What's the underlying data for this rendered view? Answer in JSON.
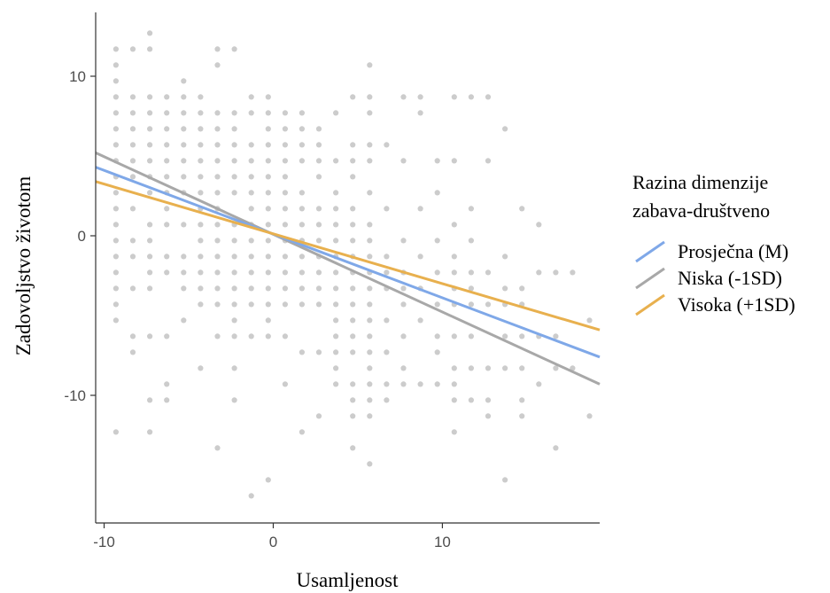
{
  "chart_data": {
    "type": "scatter",
    "title": "",
    "xlabel": "Usamljenost",
    "ylabel": "Zadovoljstvo životom",
    "xlim": [
      -10.5,
      19.3
    ],
    "ylim": [
      -18,
      14
    ],
    "x_ticks": [
      -10,
      0,
      10
    ],
    "x_tick_labels": [
      "-10",
      "0",
      "10"
    ],
    "y_ticks": [
      -10,
      0,
      10
    ],
    "y_tick_labels": [
      "-10",
      "0",
      "10"
    ],
    "grid": false,
    "point_color": "#999999",
    "point_opacity": 0.5,
    "legend": {
      "title_lines": [
        "Razina dimenzije",
        "zabava-društveno"
      ],
      "position": "right",
      "entries": [
        {
          "label": "Prosječna (M)",
          "color": "#7fa8e8"
        },
        {
          "label": "Niska (-1SD)",
          "color": "#a8a8a8"
        },
        {
          "label": "Visoka (+1SD)",
          "color": "#e8b04e"
        }
      ]
    },
    "series": [
      {
        "name": "Prosječna (M)",
        "color": "#7fa8e8",
        "x": [
          -10.5,
          19.3
        ],
        "y": [
          4.3,
          -7.6
        ]
      },
      {
        "name": "Niska (-1SD)",
        "color": "#a8a8a8",
        "x": [
          -10.5,
          19.3
        ],
        "y": [
          5.2,
          -9.3
        ]
      },
      {
        "name": "Visoka (+1SD)",
        "color": "#e8b04e",
        "x": [
          -10.5,
          19.3
        ],
        "y": [
          3.4,
          -5.9
        ]
      }
    ],
    "points": [
      [
        -9.3,
        11.7
      ],
      [
        -9.3,
        10.7
      ],
      [
        -9.3,
        9.7
      ],
      [
        -9.3,
        8.7
      ],
      [
        -9.3,
        7.7
      ],
      [
        -9.3,
        6.7
      ],
      [
        -9.3,
        5.7
      ],
      [
        -9.3,
        4.7
      ],
      [
        -9.3,
        3.7
      ],
      [
        -9.3,
        2.7
      ],
      [
        -9.3,
        1.7
      ],
      [
        -9.3,
        0.7
      ],
      [
        -9.3,
        -0.3
      ],
      [
        -9.3,
        -1.3
      ],
      [
        -9.3,
        -2.3
      ],
      [
        -9.3,
        -3.3
      ],
      [
        -9.3,
        -4.3
      ],
      [
        -9.3,
        -5.3
      ],
      [
        -9.3,
        -12.3
      ],
      [
        -8.3,
        11.7
      ],
      [
        -8.3,
        8.7
      ],
      [
        -8.3,
        7.7
      ],
      [
        -8.3,
        6.7
      ],
      [
        -8.3,
        5.7
      ],
      [
        -8.3,
        4.7
      ],
      [
        -8.3,
        3.7
      ],
      [
        -8.3,
        1.7
      ],
      [
        -8.3,
        -0.3
      ],
      [
        -8.3,
        -1.3
      ],
      [
        -8.3,
        -3.3
      ],
      [
        -8.3,
        -6.3
      ],
      [
        -8.3,
        -7.3
      ],
      [
        -7.3,
        12.7
      ],
      [
        -7.3,
        11.7
      ],
      [
        -7.3,
        8.7
      ],
      [
        -7.3,
        7.7
      ],
      [
        -7.3,
        6.7
      ],
      [
        -7.3,
        5.7
      ],
      [
        -7.3,
        4.7
      ],
      [
        -7.3,
        3.7
      ],
      [
        -7.3,
        2.7
      ],
      [
        -7.3,
        0.7
      ],
      [
        -7.3,
        -0.3
      ],
      [
        -7.3,
        -1.3
      ],
      [
        -7.3,
        -2.3
      ],
      [
        -7.3,
        -3.3
      ],
      [
        -7.3,
        -6.3
      ],
      [
        -7.3,
        -10.3
      ],
      [
        -7.3,
        -12.3
      ],
      [
        -6.3,
        8.7
      ],
      [
        -6.3,
        7.7
      ],
      [
        -6.3,
        6.7
      ],
      [
        -6.3,
        5.7
      ],
      [
        -6.3,
        4.7
      ],
      [
        -6.3,
        3.7
      ],
      [
        -6.3,
        2.7
      ],
      [
        -6.3,
        1.7
      ],
      [
        -6.3,
        0.7
      ],
      [
        -6.3,
        -1.3
      ],
      [
        -6.3,
        -2.3
      ],
      [
        -6.3,
        -6.3
      ],
      [
        -6.3,
        -9.3
      ],
      [
        -6.3,
        -10.3
      ],
      [
        -5.3,
        9.7
      ],
      [
        -5.3,
        8.7
      ],
      [
        -5.3,
        7.7
      ],
      [
        -5.3,
        6.7
      ],
      [
        -5.3,
        5.7
      ],
      [
        -5.3,
        4.7
      ],
      [
        -5.3,
        3.7
      ],
      [
        -5.3,
        2.7
      ],
      [
        -5.3,
        0.7
      ],
      [
        -5.3,
        -1.3
      ],
      [
        -5.3,
        -2.3
      ],
      [
        -5.3,
        -3.3
      ],
      [
        -5.3,
        -5.3
      ],
      [
        -4.3,
        8.7
      ],
      [
        -4.3,
        7.7
      ],
      [
        -4.3,
        6.7
      ],
      [
        -4.3,
        5.7
      ],
      [
        -4.3,
        4.7
      ],
      [
        -4.3,
        3.7
      ],
      [
        -4.3,
        2.7
      ],
      [
        -4.3,
        1.7
      ],
      [
        -4.3,
        0.7
      ],
      [
        -4.3,
        -0.3
      ],
      [
        -4.3,
        -1.3
      ],
      [
        -4.3,
        -2.3
      ],
      [
        -4.3,
        -3.3
      ],
      [
        -4.3,
        -4.3
      ],
      [
        -4.3,
        -8.3
      ],
      [
        -3.3,
        11.7
      ],
      [
        -3.3,
        10.7
      ],
      [
        -3.3,
        7.7
      ],
      [
        -3.3,
        6.7
      ],
      [
        -3.3,
        5.7
      ],
      [
        -3.3,
        4.7
      ],
      [
        -3.3,
        3.7
      ],
      [
        -3.3,
        2.7
      ],
      [
        -3.3,
        1.7
      ],
      [
        -3.3,
        0.7
      ],
      [
        -3.3,
        -0.3
      ],
      [
        -3.3,
        -1.3
      ],
      [
        -3.3,
        -2.3
      ],
      [
        -3.3,
        -3.3
      ],
      [
        -3.3,
        -4.3
      ],
      [
        -3.3,
        -6.3
      ],
      [
        -3.3,
        -13.3
      ],
      [
        -2.3,
        11.7
      ],
      [
        -2.3,
        7.7
      ],
      [
        -2.3,
        6.7
      ],
      [
        -2.3,
        5.7
      ],
      [
        -2.3,
        4.7
      ],
      [
        -2.3,
        3.7
      ],
      [
        -2.3,
        2.7
      ],
      [
        -2.3,
        0.7
      ],
      [
        -2.3,
        -0.3
      ],
      [
        -2.3,
        -1.3
      ],
      [
        -2.3,
        -2.3
      ],
      [
        -2.3,
        -3.3
      ],
      [
        -2.3,
        -4.3
      ],
      [
        -2.3,
        -5.3
      ],
      [
        -2.3,
        -6.3
      ],
      [
        -2.3,
        -8.3
      ],
      [
        -2.3,
        -10.3
      ],
      [
        -1.3,
        8.7
      ],
      [
        -1.3,
        7.7
      ],
      [
        -1.3,
        5.7
      ],
      [
        -1.3,
        4.7
      ],
      [
        -1.3,
        3.7
      ],
      [
        -1.3,
        2.7
      ],
      [
        -1.3,
        1.7
      ],
      [
        -1.3,
        0.7
      ],
      [
        -1.3,
        -0.3
      ],
      [
        -1.3,
        -1.3
      ],
      [
        -1.3,
        -2.3
      ],
      [
        -1.3,
        -3.3
      ],
      [
        -1.3,
        -4.3
      ],
      [
        -1.3,
        -6.3
      ],
      [
        -1.3,
        -16.3
      ],
      [
        -0.3,
        8.7
      ],
      [
        -0.3,
        7.7
      ],
      [
        -0.3,
        6.7
      ],
      [
        -0.3,
        5.7
      ],
      [
        -0.3,
        4.7
      ],
      [
        -0.3,
        3.7
      ],
      [
        -0.3,
        2.7
      ],
      [
        -0.3,
        1.7
      ],
      [
        -0.3,
        0.7
      ],
      [
        -0.3,
        -0.3
      ],
      [
        -0.3,
        -1.3
      ],
      [
        -0.3,
        -2.3
      ],
      [
        -0.3,
        -3.3
      ],
      [
        -0.3,
        -4.3
      ],
      [
        -0.3,
        -5.3
      ],
      [
        -0.3,
        -6.3
      ],
      [
        -0.3,
        -15.3
      ],
      [
        0.7,
        7.7
      ],
      [
        0.7,
        6.7
      ],
      [
        0.7,
        5.7
      ],
      [
        0.7,
        4.7
      ],
      [
        0.7,
        3.7
      ],
      [
        0.7,
        2.7
      ],
      [
        0.7,
        1.7
      ],
      [
        0.7,
        0.7
      ],
      [
        0.7,
        -0.3
      ],
      [
        0.7,
        -1.3
      ],
      [
        0.7,
        -2.3
      ],
      [
        0.7,
        -3.3
      ],
      [
        0.7,
        -4.3
      ],
      [
        0.7,
        -6.3
      ],
      [
        0.7,
        -9.3
      ],
      [
        1.7,
        7.7
      ],
      [
        1.7,
        6.7
      ],
      [
        1.7,
        5.7
      ],
      [
        1.7,
        4.7
      ],
      [
        1.7,
        2.7
      ],
      [
        1.7,
        1.7
      ],
      [
        1.7,
        0.7
      ],
      [
        1.7,
        -0.3
      ],
      [
        1.7,
        -1.3
      ],
      [
        1.7,
        -2.3
      ],
      [
        1.7,
        -3.3
      ],
      [
        1.7,
        -4.3
      ],
      [
        1.7,
        -7.3
      ],
      [
        1.7,
        -12.3
      ],
      [
        2.7,
        6.7
      ],
      [
        2.7,
        5.7
      ],
      [
        2.7,
        4.7
      ],
      [
        2.7,
        3.7
      ],
      [
        2.7,
        1.7
      ],
      [
        2.7,
        0.7
      ],
      [
        2.7,
        -0.3
      ],
      [
        2.7,
        -1.3
      ],
      [
        2.7,
        -2.3
      ],
      [
        2.7,
        -3.3
      ],
      [
        2.7,
        -4.3
      ],
      [
        2.7,
        -7.3
      ],
      [
        2.7,
        -11.3
      ],
      [
        3.7,
        7.7
      ],
      [
        3.7,
        4.7
      ],
      [
        3.7,
        2.7
      ],
      [
        3.7,
        1.7
      ],
      [
        3.7,
        0.7
      ],
      [
        3.7,
        -0.3
      ],
      [
        3.7,
        -1.3
      ],
      [
        3.7,
        -2.3
      ],
      [
        3.7,
        -3.3
      ],
      [
        3.7,
        -4.3
      ],
      [
        3.7,
        -5.3
      ],
      [
        3.7,
        -6.3
      ],
      [
        3.7,
        -7.3
      ],
      [
        3.7,
        -8.3
      ],
      [
        3.7,
        -9.3
      ],
      [
        4.7,
        8.7
      ],
      [
        4.7,
        5.7
      ],
      [
        4.7,
        4.7
      ],
      [
        4.7,
        3.7
      ],
      [
        4.7,
        1.7
      ],
      [
        4.7,
        0.7
      ],
      [
        4.7,
        -0.3
      ],
      [
        4.7,
        -1.3
      ],
      [
        4.7,
        -2.3
      ],
      [
        4.7,
        -3.3
      ],
      [
        4.7,
        -4.3
      ],
      [
        4.7,
        -5.3
      ],
      [
        4.7,
        -6.3
      ],
      [
        4.7,
        -7.3
      ],
      [
        4.7,
        -9.3
      ],
      [
        4.7,
        -10.3
      ],
      [
        4.7,
        -11.3
      ],
      [
        4.7,
        -13.3
      ],
      [
        5.7,
        10.7
      ],
      [
        5.7,
        8.7
      ],
      [
        5.7,
        7.7
      ],
      [
        5.7,
        5.7
      ],
      [
        5.7,
        4.7
      ],
      [
        5.7,
        2.7
      ],
      [
        5.7,
        0.7
      ],
      [
        5.7,
        -0.3
      ],
      [
        5.7,
        -1.3
      ],
      [
        5.7,
        -2.3
      ],
      [
        5.7,
        -3.3
      ],
      [
        5.7,
        -4.3
      ],
      [
        5.7,
        -5.3
      ],
      [
        5.7,
        -6.3
      ],
      [
        5.7,
        -7.3
      ],
      [
        5.7,
        -8.3
      ],
      [
        5.7,
        -9.3
      ],
      [
        5.7,
        -10.3
      ],
      [
        5.7,
        -11.3
      ],
      [
        5.7,
        -14.3
      ],
      [
        6.7,
        5.7
      ],
      [
        6.7,
        1.7
      ],
      [
        6.7,
        -1.3
      ],
      [
        6.7,
        -2.3
      ],
      [
        6.7,
        -3.3
      ],
      [
        6.7,
        -5.3
      ],
      [
        6.7,
        -7.3
      ],
      [
        6.7,
        -9.3
      ],
      [
        6.7,
        -10.3
      ],
      [
        7.7,
        8.7
      ],
      [
        7.7,
        4.7
      ],
      [
        7.7,
        -0.3
      ],
      [
        7.7,
        -2.3
      ],
      [
        7.7,
        -3.3
      ],
      [
        7.7,
        -4.3
      ],
      [
        7.7,
        -6.3
      ],
      [
        7.7,
        -8.3
      ],
      [
        7.7,
        -9.3
      ],
      [
        8.7,
        8.7
      ],
      [
        8.7,
        7.7
      ],
      [
        8.7,
        1.7
      ],
      [
        8.7,
        -1.3
      ],
      [
        8.7,
        -3.3
      ],
      [
        8.7,
        -5.3
      ],
      [
        8.7,
        -9.3
      ],
      [
        9.7,
        4.7
      ],
      [
        9.7,
        2.7
      ],
      [
        9.7,
        -0.3
      ],
      [
        9.7,
        -2.3
      ],
      [
        9.7,
        -4.3
      ],
      [
        9.7,
        -6.3
      ],
      [
        9.7,
        -7.3
      ],
      [
        9.7,
        -9.3
      ],
      [
        10.7,
        8.7
      ],
      [
        10.7,
        4.7
      ],
      [
        10.7,
        0.7
      ],
      [
        10.7,
        -1.3
      ],
      [
        10.7,
        -2.3
      ],
      [
        10.7,
        -3.3
      ],
      [
        10.7,
        -4.3
      ],
      [
        10.7,
        -6.3
      ],
      [
        10.7,
        -8.3
      ],
      [
        10.7,
        -9.3
      ],
      [
        10.7,
        -10.3
      ],
      [
        10.7,
        -12.3
      ],
      [
        11.7,
        8.7
      ],
      [
        11.7,
        1.7
      ],
      [
        11.7,
        -0.3
      ],
      [
        11.7,
        -2.3
      ],
      [
        11.7,
        -3.3
      ],
      [
        11.7,
        -4.3
      ],
      [
        11.7,
        -6.3
      ],
      [
        11.7,
        -8.3
      ],
      [
        11.7,
        -10.3
      ],
      [
        12.7,
        8.7
      ],
      [
        12.7,
        4.7
      ],
      [
        12.7,
        -2.3
      ],
      [
        12.7,
        -4.3
      ],
      [
        12.7,
        -8.3
      ],
      [
        12.7,
        -10.3
      ],
      [
        12.7,
        -11.3
      ],
      [
        13.7,
        6.7
      ],
      [
        13.7,
        -1.3
      ],
      [
        13.7,
        -3.3
      ],
      [
        13.7,
        -4.3
      ],
      [
        13.7,
        -6.3
      ],
      [
        13.7,
        -8.3
      ],
      [
        13.7,
        -15.3
      ],
      [
        14.7,
        1.7
      ],
      [
        14.7,
        -3.3
      ],
      [
        14.7,
        -4.3
      ],
      [
        14.7,
        -6.3
      ],
      [
        14.7,
        -8.3
      ],
      [
        14.7,
        -10.3
      ],
      [
        14.7,
        -11.3
      ],
      [
        15.7,
        0.7
      ],
      [
        15.7,
        -2.3
      ],
      [
        15.7,
        -6.3
      ],
      [
        15.7,
        -9.3
      ],
      [
        16.7,
        -2.3
      ],
      [
        16.7,
        -6.3
      ],
      [
        16.7,
        -8.3
      ],
      [
        16.7,
        -13.3
      ],
      [
        17.7,
        -2.3
      ],
      [
        17.7,
        -8.3
      ],
      [
        18.7,
        -5.3
      ],
      [
        18.7,
        -11.3
      ]
    ]
  }
}
